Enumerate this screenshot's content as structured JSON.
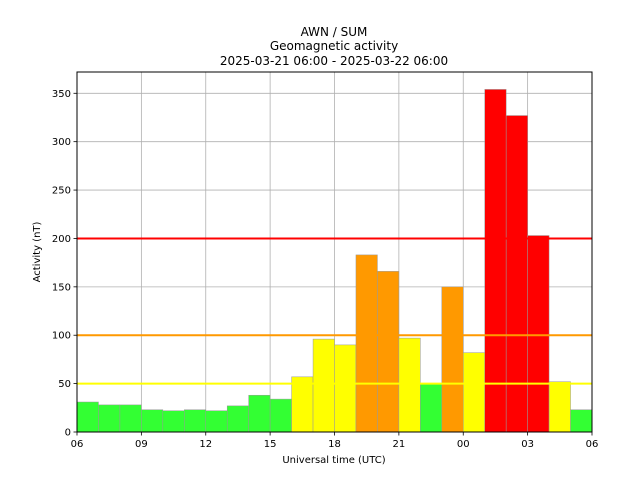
{
  "chart_data": {
    "type": "bar",
    "title": "AWN / SUM",
    "subtitle": "Geomagnetic activity",
    "date_range": "2025-03-21 06:00 - 2025-03-22 06:00",
    "xlabel": "Universal time (UTC)",
    "ylabel": "Activity (nT)",
    "xlim": [
      0,
      24
    ],
    "ylim": [
      0,
      372
    ],
    "x_ticks": [
      0,
      3,
      6,
      9,
      12,
      15,
      18,
      21,
      24
    ],
    "x_tick_labels": [
      "06",
      "09",
      "12",
      "15",
      "18",
      "21",
      "00",
      "03",
      "06"
    ],
    "y_ticks": [
      0,
      50,
      100,
      150,
      200,
      250,
      300,
      350
    ],
    "y_tick_labels": [
      "0",
      "50",
      "100",
      "150",
      "200",
      "250",
      "300",
      "350"
    ],
    "grid": true,
    "bar_hours": [
      "06",
      "07",
      "08",
      "09",
      "10",
      "11",
      "12",
      "13",
      "14",
      "15",
      "16",
      "17",
      "18",
      "19",
      "20",
      "21",
      "22",
      "23",
      "00",
      "01",
      "02",
      "03",
      "04",
      "05"
    ],
    "values": [
      31,
      28,
      28,
      23,
      22,
      23,
      22,
      27,
      38,
      34,
      57,
      96,
      90,
      183,
      166,
      97,
      50,
      150,
      82,
      354,
      327,
      203,
      52,
      23
    ],
    "bar_colors": [
      "#33ff33",
      "#33ff33",
      "#33ff33",
      "#33ff33",
      "#33ff33",
      "#33ff33",
      "#33ff33",
      "#33ff33",
      "#33ff33",
      "#33ff33",
      "#ffff00",
      "#ffff00",
      "#ffff00",
      "#ff9900",
      "#ff9900",
      "#ffff00",
      "#33ff33",
      "#ff9900",
      "#ffff00",
      "#ff0000",
      "#ff0000",
      "#ff0000",
      "#ffff00",
      "#33ff33"
    ],
    "thresholds": [
      {
        "value": 50,
        "color": "#ffff00"
      },
      {
        "value": 100,
        "color": "#ff9900"
      },
      {
        "value": 200,
        "color": "#ff0000"
      }
    ],
    "colors": {
      "grid": "#b0b0b0",
      "bar_edge": "#999999"
    }
  }
}
